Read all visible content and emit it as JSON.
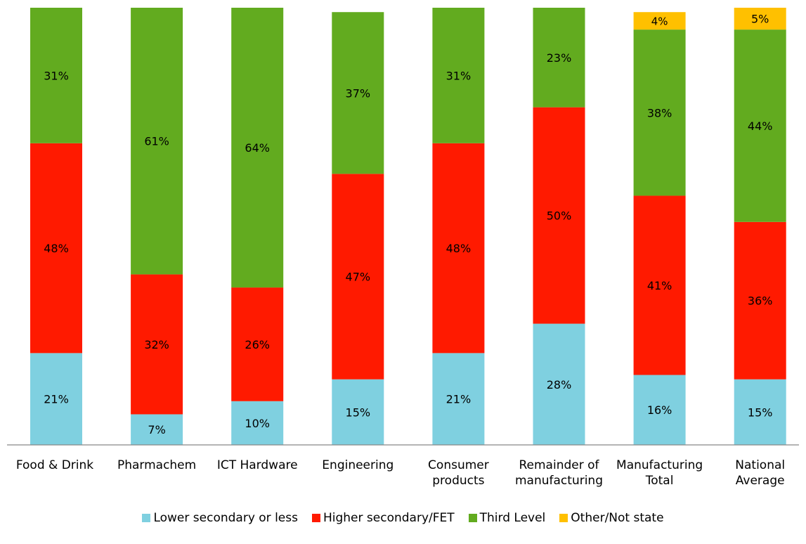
{
  "chart_data": {
    "type": "bar",
    "stacked": true,
    "categories": [
      [
        "Food & Drink"
      ],
      [
        "Pharmachem"
      ],
      [
        "ICT Hardware"
      ],
      [
        "Engineering"
      ],
      [
        "Consumer",
        "products"
      ],
      [
        "Remainder of",
        "manufacturing"
      ],
      [
        "Manufacturing",
        "Total"
      ],
      [
        "National",
        "Average"
      ]
    ],
    "series": [
      {
        "name": "Lower secondary or less",
        "color": "#7fd0e0",
        "values": [
          21,
          7,
          10,
          15,
          21,
          28,
          16,
          15
        ]
      },
      {
        "name": "Higher secondary/FET",
        "color": "#ff1a00",
        "values": [
          48,
          32,
          26,
          47,
          48,
          50,
          41,
          36
        ]
      },
      {
        "name": "Third Level",
        "color": "#62ab1f",
        "values": [
          31,
          61,
          64,
          37,
          31,
          23,
          38,
          44
        ]
      },
      {
        "name": "Other/Not state",
        "color": "#ffc000",
        "values": [
          0,
          0,
          0,
          0,
          0,
          0,
          4,
          5
        ]
      }
    ],
    "data_labels": [
      [
        "21%",
        "7%",
        "10%",
        "15%",
        "21%",
        "28%",
        "16%",
        "15%"
      ],
      [
        "48%",
        "32%",
        "26%",
        "47%",
        "48%",
        "50%",
        "41%",
        "36%"
      ],
      [
        "31%",
        "61%",
        "64%",
        "37%",
        "31%",
        "23%",
        "38%",
        "44%"
      ],
      [
        "",
        "",
        "",
        "",
        "",
        "",
        "4%",
        "5%"
      ]
    ],
    "ylim": [
      0,
      100
    ],
    "grid": false,
    "legend": "bottom"
  }
}
